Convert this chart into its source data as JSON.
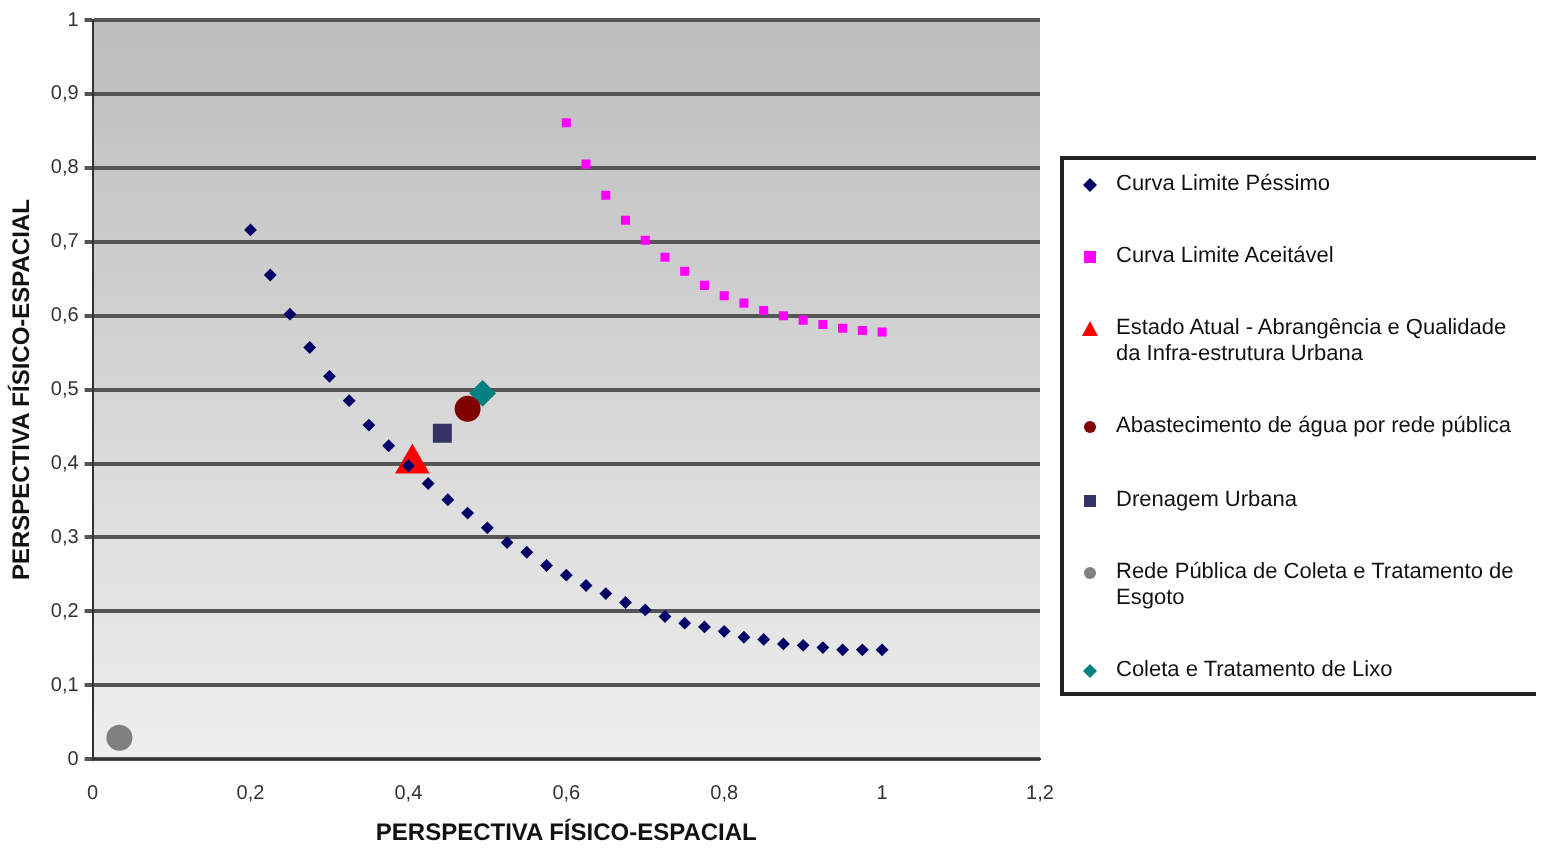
{
  "chart_data": {
    "type": "scatter",
    "xlabel": "PERSPECTIVA FÍSICO-ESPACIAL",
    "ylabel": "PERSPECTIVA FÍSICO-ESPACIAL",
    "xlim": [
      0,
      1.2
    ],
    "xticks": [
      0,
      {
        "value": 0.2,
        "label": "0,2"
      },
      {
        "value": 0.4,
        "label": "0,4"
      },
      {
        "value": 0.6,
        "label": "0,6"
      },
      {
        "value": 0.8,
        "label": "0,8"
      },
      1,
      {
        "value": 1.2,
        "label": "1,2"
      }
    ],
    "ylim": [
      0,
      1
    ],
    "yticks": [
      0,
      {
        "value": 0.1,
        "label": "0,1"
      },
      {
        "value": 0.2,
        "label": "0,2"
      },
      {
        "value": 0.3,
        "label": "0,3"
      },
      {
        "value": 0.4,
        "label": "0,4"
      },
      {
        "value": 0.5,
        "label": "0,5"
      },
      {
        "value": 0.6,
        "label": "0,6"
      },
      {
        "value": 0.7,
        "label": "0,7"
      },
      {
        "value": 0.8,
        "label": "0,8"
      },
      {
        "value": 0.9,
        "label": "0,9"
      },
      1
    ],
    "grid": "y",
    "legend": "right",
    "series": [
      {
        "name": "Curva Limite Péssimo",
        "color": "#000066",
        "marker": "diamond",
        "x": [
          0.2,
          0.225,
          0.25,
          0.275,
          0.3,
          0.325,
          0.35,
          0.375,
          0.4,
          0.425,
          0.45,
          0.475,
          0.5,
          0.525,
          0.55,
          0.575,
          0.6,
          0.625,
          0.65,
          0.675,
          0.7,
          0.725,
          0.75,
          0.775,
          0.8,
          0.825,
          0.85,
          0.875,
          0.9,
          0.925,
          0.95,
          0.975,
          1.0
        ],
        "values": [
          0.716,
          0.655,
          0.602,
          0.557,
          0.518,
          0.485,
          0.452,
          0.424,
          0.397,
          0.373,
          0.351,
          0.333,
          0.313,
          0.293,
          0.28,
          0.262,
          0.249,
          0.235,
          0.224,
          0.212,
          0.202,
          0.193,
          0.184,
          0.179,
          0.173,
          0.165,
          0.162,
          0.156,
          0.154,
          0.151,
          0.148,
          0.148,
          0.148
        ]
      },
      {
        "name": "Curva Limite Aceitável",
        "color": "#ff00ff",
        "marker": "square",
        "x": [
          0.6,
          0.625,
          0.65,
          0.675,
          0.7,
          0.725,
          0.75,
          0.775,
          0.8,
          0.825,
          0.85,
          0.875,
          0.9,
          0.925,
          0.95,
          0.975,
          1.0
        ],
        "values": [
          0.861,
          0.805,
          0.763,
          0.729,
          0.702,
          0.679,
          0.66,
          0.641,
          0.627,
          0.617,
          0.607,
          0.6,
          0.594,
          0.588,
          0.583,
          0.58,
          0.578
        ]
      },
      {
        "name": "Estado Atual - Abrangência e Qualidade da Infra-estrutura Urbana",
        "color": "#ff0000",
        "marker": "triangle",
        "x": [
          0.405
        ],
        "values": [
          0.4
        ]
      },
      {
        "name": "Abastecimento de água por rede pública",
        "color": "#800000",
        "marker": "circle",
        "x": [
          0.475
        ],
        "values": [
          0.474
        ]
      },
      {
        "name": "Drenagem Urbana",
        "color": "#333366",
        "marker": "square",
        "x": [
          0.443
        ],
        "values": [
          0.441
        ]
      },
      {
        "name": "Rede Pública de Coleta e Tratamento de Esgoto",
        "color": "#808080",
        "marker": "circle",
        "x": [
          0.034
        ],
        "values": [
          0.029
        ]
      },
      {
        "name": "Coleta e Tratamento de Lixo",
        "color": "#008080",
        "marker": "diamond",
        "x": [
          0.494
        ],
        "values": [
          0.495
        ]
      }
    ]
  }
}
